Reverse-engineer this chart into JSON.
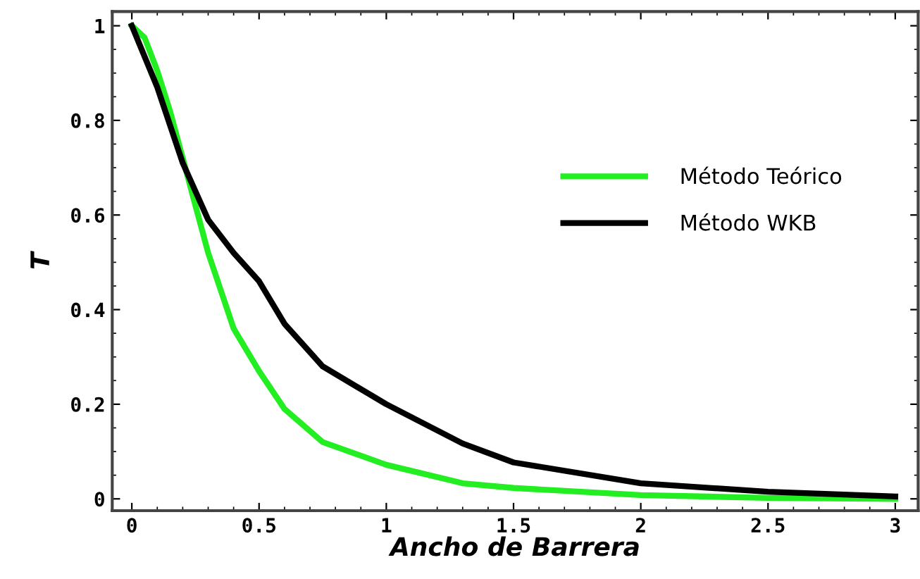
{
  "chart_data": {
    "type": "line",
    "xlabel": "Ancho de Barrera",
    "ylabel": "T",
    "xlim": [
      -0.077,
      3.09
    ],
    "ylim": [
      -0.025,
      1.03
    ],
    "xticks": [
      0,
      0.5,
      1,
      1.5,
      2,
      2.5,
      3
    ],
    "yticks": [
      0,
      0.2,
      0.4,
      0.6,
      0.8,
      1
    ],
    "legend": "right",
    "grid": false,
    "marker": "none",
    "line_style": "solid",
    "series": [
      {
        "name": "Método Teórico",
        "color": "#22ee22",
        "x": [
          0,
          0.05,
          0.1,
          0.15,
          0.2,
          0.25,
          0.3,
          0.35,
          0.4,
          0.5,
          0.6,
          0.75,
          1,
          1.3,
          1.5,
          2,
          2.5,
          3
        ],
        "values": [
          1,
          0.975,
          0.905,
          0.82,
          0.72,
          0.62,
          0.52,
          0.44,
          0.36,
          0.27,
          0.19,
          0.12,
          0.072,
          0.033,
          0.023,
          0.008,
          0.002,
          0
        ]
      },
      {
        "name": "Método WKB",
        "color": "#000000",
        "x": [
          0,
          0.1,
          0.15,
          0.2,
          0.25,
          0.3,
          0.4,
          0.5,
          0.6,
          0.75,
          1,
          1.3,
          1.5,
          2,
          2.5,
          3
        ],
        "values": [
          1,
          0.87,
          0.79,
          0.71,
          0.65,
          0.59,
          0.52,
          0.46,
          0.37,
          0.28,
          0.2,
          0.117,
          0.077,
          0.033,
          0.015,
          0.005
        ]
      }
    ]
  }
}
